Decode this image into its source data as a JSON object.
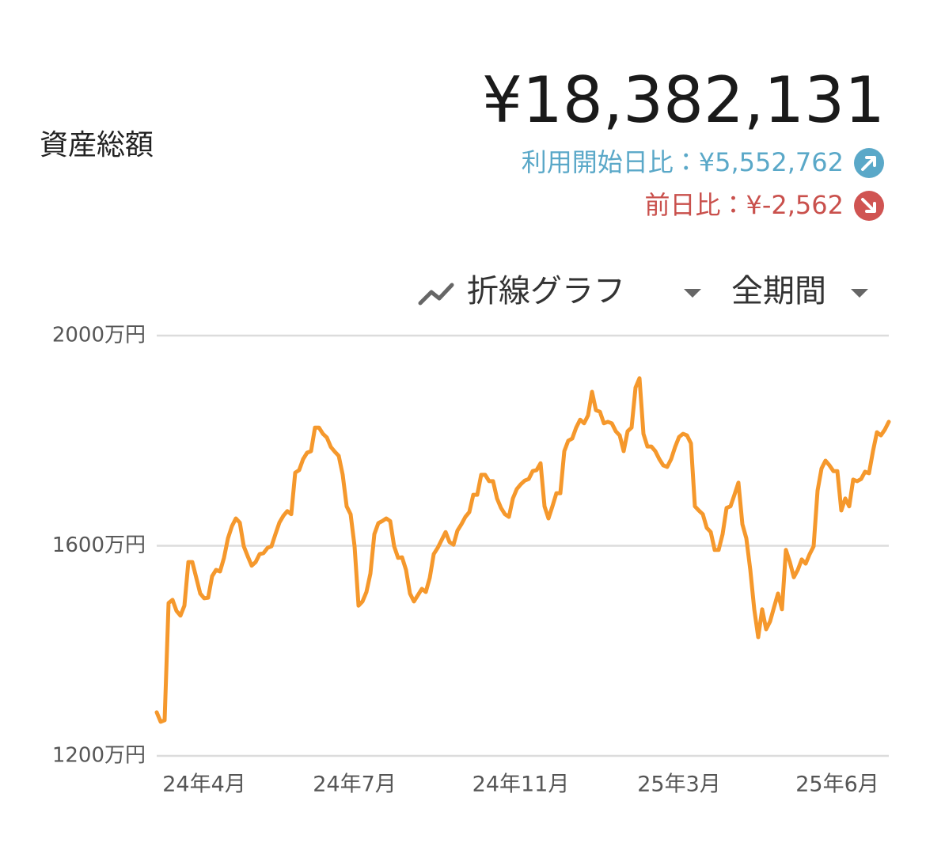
{
  "header": {
    "title": "資産総額",
    "total": "¥18,382,131",
    "since_start": "利用開始日比：¥5,552,762",
    "day_change": "前日比：¥-2,562"
  },
  "controls": {
    "chart_type": "折線グラフ",
    "period": "全期間"
  },
  "chart_data": {
    "type": "line",
    "categories": [
      null,
      null,
      null,
      null,
      null,
      null,
      null,
      null,
      null,
      null,
      null,
      null,
      "24年4月",
      null,
      null,
      null,
      null,
      null,
      null,
      null,
      null,
      null,
      null,
      null,
      null,
      null,
      null,
      null,
      null,
      null,
      null,
      null,
      null,
      null,
      null,
      null,
      null,
      null,
      null,
      null,
      null,
      null,
      null,
      null,
      null,
      null,
      null,
      null,
      null,
      null,
      "24年7月",
      null,
      null,
      null,
      null,
      null,
      null,
      null,
      null,
      null,
      null,
      null,
      null,
      null,
      null,
      null,
      null,
      null,
      null,
      null,
      null,
      null,
      null,
      null,
      null,
      null,
      null,
      null,
      null,
      null,
      null,
      null,
      null,
      null,
      null,
      null,
      null,
      null,
      null,
      null,
      null,
      null,
      "24年11月",
      null,
      null,
      null,
      null,
      null,
      null,
      null,
      null,
      null,
      null,
      null,
      null,
      null,
      null,
      null,
      null,
      null,
      null,
      null,
      null,
      null,
      null,
      null,
      null,
      null,
      null,
      null,
      null,
      null,
      null,
      null,
      null,
      null,
      null,
      null,
      null,
      null,
      null,
      null,
      "25年3月",
      null,
      null,
      null,
      null,
      null,
      null,
      null,
      null,
      null,
      null,
      null,
      null,
      null,
      null,
      null,
      null,
      null,
      null,
      null,
      null,
      null,
      null,
      null,
      null,
      null,
      null,
      null,
      null,
      null,
      null,
      null,
      null,
      null,
      null,
      null,
      null,
      null,
      null,
      null,
      "25年6月",
      null,
      null,
      null,
      null,
      null,
      null,
      null,
      null,
      null,
      null,
      null,
      null,
      null
    ],
    "series": [
      {
        "color": "#f5982c",
        "values": [
          1283,
          1265,
          1268,
          1491,
          1497,
          1476,
          1467,
          1486,
          1569,
          1569,
          1539,
          1509,
          1500,
          1501,
          1542,
          1554,
          1551,
          1577,
          1614,
          1637,
          1652,
          1644,
          1599,
          1580,
          1562,
          1569,
          1584,
          1586,
          1596,
          1599,
          1622,
          1644,
          1657,
          1666,
          1660,
          1739,
          1744,
          1765,
          1777,
          1780,
          1825,
          1825,
          1813,
          1806,
          1788,
          1779,
          1771,
          1735,
          1675,
          1660,
          1599,
          1486,
          1494,
          1512,
          1547,
          1622,
          1643,
          1647,
          1652,
          1647,
          1599,
          1577,
          1578,
          1554,
          1509,
          1494,
          1506,
          1518,
          1512,
          1539,
          1584,
          1596,
          1611,
          1626,
          1607,
          1602,
          1629,
          1641,
          1655,
          1664,
          1697,
          1697,
          1735,
          1735,
          1723,
          1723,
          1690,
          1672,
          1660,
          1655,
          1690,
          1708,
          1717,
          1724,
          1727,
          1742,
          1744,
          1757,
          1675,
          1652,
          1675,
          1700,
          1700,
          1780,
          1800,
          1804,
          1825,
          1840,
          1833,
          1848,
          1893,
          1858,
          1855,
          1833,
          1836,
          1833,
          1818,
          1810,
          1780,
          1818,
          1825,
          1901,
          1919,
          1813,
          1789,
          1789,
          1780,
          1765,
          1753,
          1750,
          1765,
          1788,
          1807,
          1813,
          1810,
          1795,
          1675,
          1667,
          1660,
          1634,
          1626,
          1592,
          1592,
          1622,
          1672,
          1675,
          1697,
          1720,
          1641,
          1614,
          1554,
          1479,
          1426,
          1479,
          1441,
          1456,
          1483,
          1509,
          1479,
          1592,
          1569,
          1540,
          1554,
          1574,
          1566,
          1584,
          1599,
          1705,
          1747,
          1762,
          1753,
          1742,
          1742,
          1667,
          1690,
          1675,
          1726,
          1723,
          1727,
          1741,
          1738,
          1780,
          1816,
          1810,
          1821,
          1836
        ]
      }
    ],
    "ylim": [
      1200,
      2000
    ],
    "yticks": [
      {
        "value": 1200,
        "label": "1200万円"
      },
      {
        "value": 1600,
        "label": "1600万円"
      },
      {
        "value": 2000,
        "label": "2000万円"
      }
    ],
    "grid": true
  }
}
